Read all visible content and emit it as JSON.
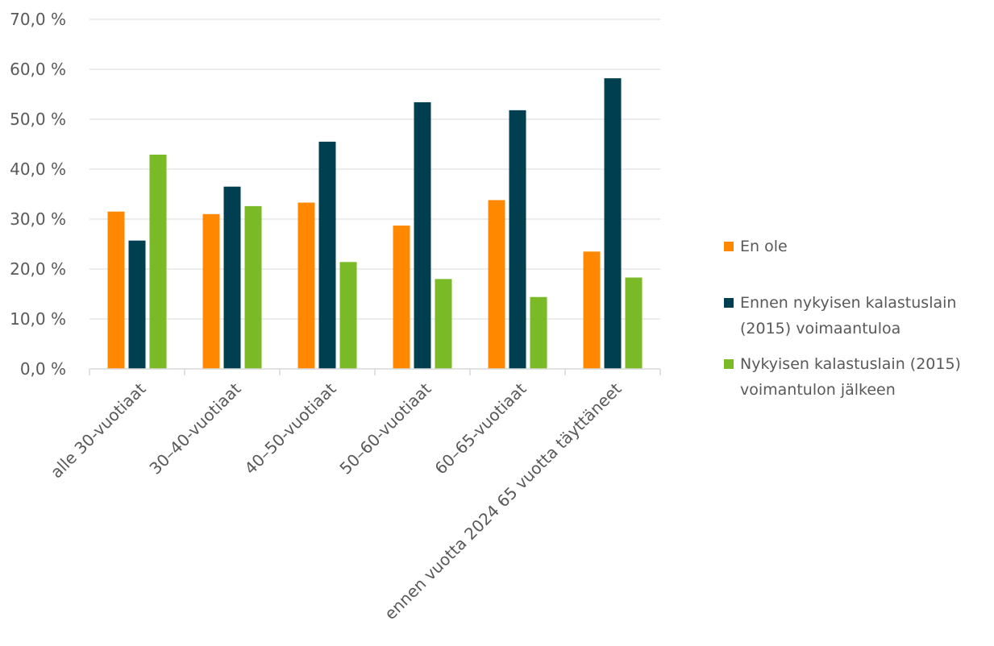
{
  "chart_data": {
    "type": "bar",
    "categories": [
      "alle 30-vuotiaat",
      "30–40-vuotiaat",
      "40–50-vuotiaat",
      "50–60-vuotiaat",
      "60–65-vuotiaat",
      "ennen vuotta 2024 65 vuotta täyttäneet"
    ],
    "series": [
      {
        "name": "En ole",
        "color": "#ff8800",
        "values": [
          31.5,
          31.0,
          33.3,
          28.7,
          33.8,
          23.5
        ]
      },
      {
        "name": "Ennen nykyisen kalastuslain (2015) voimaantuloa",
        "color": "#003f50",
        "values": [
          25.7,
          36.5,
          45.5,
          53.4,
          51.8,
          58.2
        ]
      },
      {
        "name": "Nykyisen kalastuslain (2015) voimantulon jälkeen",
        "color": "#7aba26",
        "values": [
          42.9,
          32.6,
          21.4,
          18.0,
          14.4,
          18.3
        ]
      }
    ],
    "yticks": [
      "0,0 %",
      "10,0 %",
      "20,0 %",
      "30,0 %",
      "40,0 %",
      "50,0 %",
      "60,0 %",
      "70,0 %"
    ],
    "ylim": [
      0,
      70
    ],
    "grid": true,
    "legend_position": "right"
  },
  "legend": {
    "items": [
      {
        "label": "En ole",
        "color": "#ff8800"
      },
      {
        "label": "Ennen nykyisen kalastuslain\n(2015) voimaantuloa",
        "color": "#003f50"
      },
      {
        "label": "Nykyisen kalastuslain (2015)\nvoimantulon jälkeen",
        "color": "#7aba26"
      }
    ]
  }
}
